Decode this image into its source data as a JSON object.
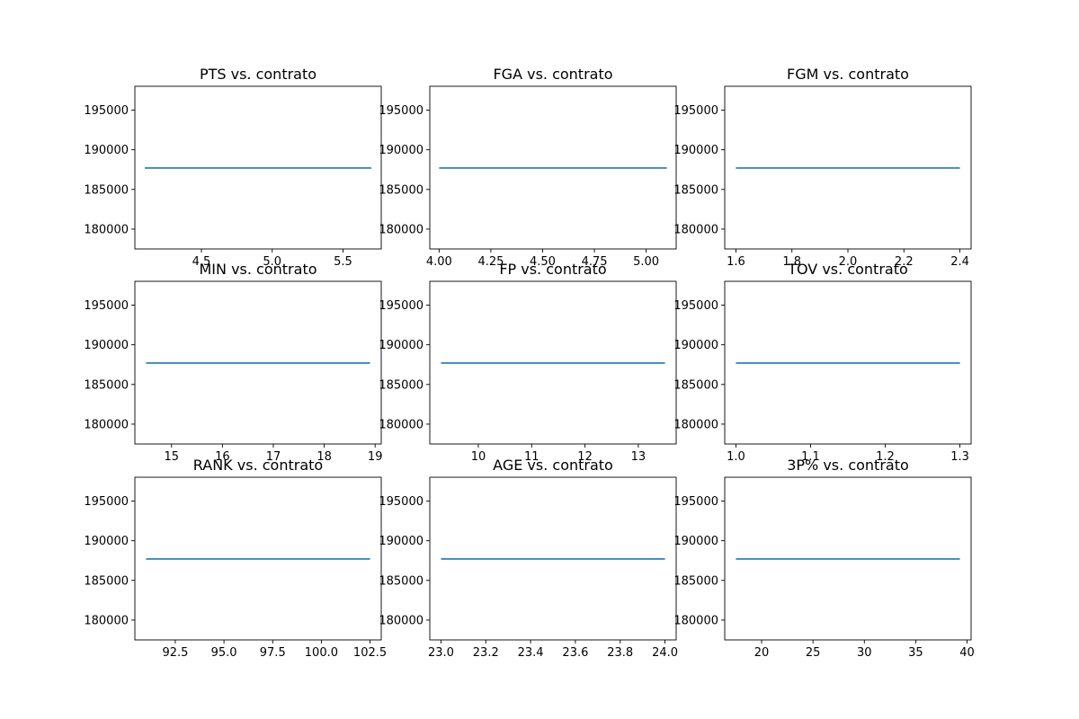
{
  "colors": {
    "line": "#1f77b4",
    "axes": "#000000",
    "background": "#ffffff"
  },
  "chart_data": [
    {
      "type": "line",
      "title": "PTS vs. contrato",
      "x": [
        4.1,
        5.7
      ],
      "y": [
        187700,
        187700
      ],
      "xlim": [
        4.03,
        5.77
      ],
      "xticks": [
        4.5,
        5.0,
        5.5
      ],
      "xtick_labels": [
        "4.5",
        "5.0",
        "5.5"
      ],
      "ylim": [
        177500,
        198000
      ],
      "yticks": [
        180000,
        185000,
        190000,
        195000
      ],
      "ytick_labels": [
        "180000",
        "185000",
        "190000",
        "195000"
      ]
    },
    {
      "type": "line",
      "title": "FGA vs. contrato",
      "x": [
        4.0,
        5.1
      ],
      "y": [
        187700,
        187700
      ],
      "xlim": [
        3.955,
        5.145
      ],
      "xticks": [
        4.0,
        4.25,
        4.5,
        4.75,
        5.0
      ],
      "xtick_labels": [
        "4.00",
        "4.25",
        "4.50",
        "4.75",
        "5.00"
      ],
      "ylim": [
        177500,
        198000
      ],
      "yticks": [
        180000,
        185000,
        190000,
        195000
      ],
      "ytick_labels": [
        "180000",
        "185000",
        "190000",
        "195000"
      ]
    },
    {
      "type": "line",
      "title": "FGM vs. contrato",
      "x": [
        1.6,
        2.4
      ],
      "y": [
        187700,
        187700
      ],
      "xlim": [
        1.56,
        2.44
      ],
      "xticks": [
        1.6,
        1.8,
        2.0,
        2.2,
        2.4
      ],
      "xtick_labels": [
        "1.6",
        "1.8",
        "2.0",
        "2.2",
        "2.4"
      ],
      "ylim": [
        177500,
        198000
      ],
      "yticks": [
        180000,
        185000,
        190000,
        195000
      ],
      "ytick_labels": [
        "180000",
        "185000",
        "190000",
        "195000"
      ]
    },
    {
      "type": "line",
      "title": "MIN vs. contrato",
      "x": [
        14.5,
        18.9
      ],
      "y": [
        187700,
        187700
      ],
      "xlim": [
        14.28,
        19.12
      ],
      "xticks": [
        15,
        16,
        17,
        18,
        19
      ],
      "xtick_labels": [
        "15",
        "16",
        "17",
        "18",
        "19"
      ],
      "ylim": [
        177500,
        198000
      ],
      "yticks": [
        180000,
        185000,
        190000,
        195000
      ],
      "ytick_labels": [
        "180000",
        "185000",
        "190000",
        "195000"
      ]
    },
    {
      "type": "line",
      "title": "FP vs. contrato",
      "x": [
        9.3,
        13.5
      ],
      "y": [
        187700,
        187700
      ],
      "xlim": [
        9.09,
        13.71
      ],
      "xticks": [
        10,
        11,
        12,
        13
      ],
      "xtick_labels": [
        "10",
        "11",
        "12",
        "13"
      ],
      "ylim": [
        177500,
        198000
      ],
      "yticks": [
        180000,
        185000,
        190000,
        195000
      ],
      "ytick_labels": [
        "180000",
        "185000",
        "190000",
        "195000"
      ]
    },
    {
      "type": "line",
      "title": "TOV vs. contrato",
      "x": [
        1.0,
        1.3
      ],
      "y": [
        187700,
        187700
      ],
      "xlim": [
        0.985,
        1.315
      ],
      "xticks": [
        1.0,
        1.1,
        1.2,
        1.3
      ],
      "xtick_labels": [
        "1.0",
        "1.1",
        "1.2",
        "1.3"
      ],
      "ylim": [
        177500,
        198000
      ],
      "yticks": [
        180000,
        185000,
        190000,
        195000
      ],
      "ytick_labels": [
        "180000",
        "185000",
        "190000",
        "195000"
      ]
    },
    {
      "type": "line",
      "title": "RANK vs. contrato",
      "x": [
        91.0,
        102.5
      ],
      "y": [
        187700,
        187700
      ],
      "xlim": [
        90.425,
        103.075
      ],
      "xticks": [
        92.5,
        95.0,
        97.5,
        100.0,
        102.5
      ],
      "xtick_labels": [
        "92.5",
        "95.0",
        "97.5",
        "100.0",
        "102.5"
      ],
      "ylim": [
        177500,
        198000
      ],
      "yticks": [
        180000,
        185000,
        190000,
        195000
      ],
      "ytick_labels": [
        "180000",
        "185000",
        "190000",
        "195000"
      ]
    },
    {
      "type": "line",
      "title": "AGE vs. contrato",
      "x": [
        23.0,
        24.0
      ],
      "y": [
        187700,
        187700
      ],
      "xlim": [
        22.95,
        24.05
      ],
      "xticks": [
        23.0,
        23.2,
        23.4,
        23.6,
        23.8,
        24.0
      ],
      "xtick_labels": [
        "23.0",
        "23.2",
        "23.4",
        "23.6",
        "23.8",
        "24.0"
      ],
      "ylim": [
        177500,
        198000
      ],
      "yticks": [
        180000,
        185000,
        190000,
        195000
      ],
      "ytick_labels": [
        "180000",
        "185000",
        "190000",
        "195000"
      ]
    },
    {
      "type": "line",
      "title": "3P% vs. contrato",
      "x": [
        17.5,
        39.3
      ],
      "y": [
        187700,
        187700
      ],
      "xlim": [
        16.41,
        40.39
      ],
      "xticks": [
        20,
        25,
        30,
        35,
        40
      ],
      "xtick_labels": [
        "20",
        "25",
        "30",
        "35",
        "40"
      ],
      "ylim": [
        177500,
        198000
      ],
      "yticks": [
        180000,
        185000,
        190000,
        195000
      ],
      "ytick_labels": [
        "180000",
        "185000",
        "190000",
        "195000"
      ]
    }
  ]
}
